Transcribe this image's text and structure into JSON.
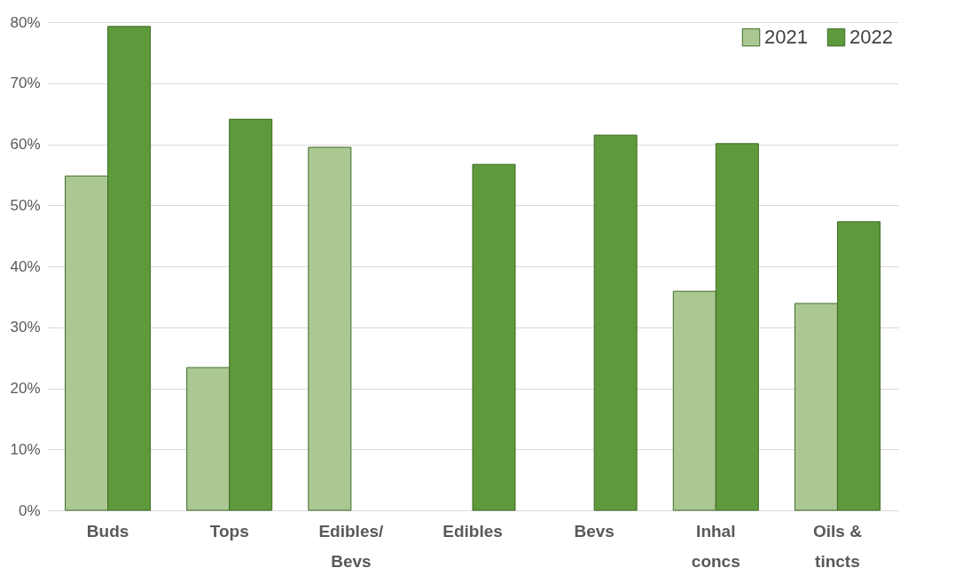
{
  "chart_data": {
    "type": "bar",
    "categories": [
      "Buds",
      "Tops",
      "Edibles/\nBevs",
      "Edibles",
      "Bevs",
      "Inhal\nconcs",
      "Oils &\ntincts"
    ],
    "series": [
      {
        "name": "2021",
        "color": "#abc893",
        "values": [
          54.8,
          23.4,
          59.5,
          null,
          null,
          35.9,
          33.9
        ]
      },
      {
        "name": "2022",
        "color": "#5e9a3c",
        "values": [
          79.3,
          64.1,
          null,
          56.7,
          61.5,
          60.1,
          47.3
        ]
      }
    ],
    "ylim": [
      0,
      80
    ],
    "yticks": [
      {
        "value": 0,
        "label": "0%"
      },
      {
        "value": 10,
        "label": "10%"
      },
      {
        "value": 20,
        "label": "20%"
      },
      {
        "value": 30,
        "label": "30%"
      },
      {
        "value": 40,
        "label": "40%"
      },
      {
        "value": 50,
        "label": "50%"
      },
      {
        "value": 60,
        "label": "60%"
      },
      {
        "value": 70,
        "label": "70%"
      },
      {
        "value": 80,
        "label": "80%"
      }
    ],
    "grid": "y",
    "legend": "top right"
  }
}
